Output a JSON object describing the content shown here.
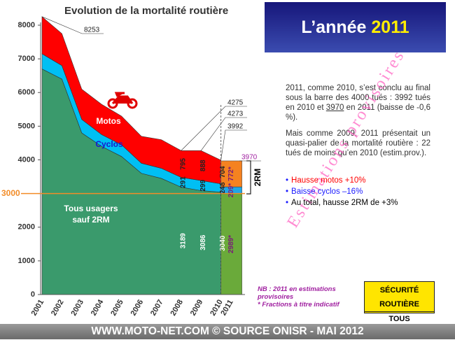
{
  "chart_data": {
    "type": "area",
    "stacked": true,
    "title": "Evolution de la mortalité routière",
    "categories": [
      "2001",
      "2002",
      "2003",
      "2004",
      "2005",
      "2006",
      "2007",
      "2008",
      "2009",
      "2010",
      "2011"
    ],
    "estimate_category": "2011",
    "series": [
      {
        "name": "Tous usagers sauf 2RM",
        "color": "#3a9a6c",
        "estimate_color": "#6aaa3a",
        "values": [
          6700,
          6400,
          4800,
          4400,
          4100,
          3600,
          3450,
          3189,
          3086,
          3040,
          2989
        ],
        "value_labels": [
          null,
          null,
          null,
          null,
          null,
          null,
          null,
          "3189",
          "3086",
          "3040",
          "2989*"
        ]
      },
      {
        "name": "Cyclos",
        "color": "#00bff3",
        "estimate_color": "#1fa6e6",
        "values": [
          450,
          400,
          400,
          350,
          350,
          300,
          300,
          291,
          299,
          248,
          209
        ],
        "value_labels": [
          null,
          null,
          null,
          null,
          null,
          null,
          null,
          "291",
          "299",
          "248",
          "209*"
        ]
      },
      {
        "name": "Motos",
        "color": "#ff0000",
        "estimate_color": "#f58220",
        "values": [
          1103,
          950,
          900,
          900,
          850,
          800,
          850,
          795,
          888,
          704,
          772
        ],
        "value_labels": [
          null,
          null,
          null,
          null,
          null,
          null,
          null,
          "795",
          "888",
          "704",
          "772*"
        ]
      }
    ],
    "totals": [
      {
        "category": "2001",
        "value": 8253
      },
      {
        "category": "2008",
        "value": 4275
      },
      {
        "category": "2009",
        "value": 4273
      },
      {
        "category": "2010",
        "value": 3992
      },
      {
        "category": "2011",
        "value": 3970
      }
    ],
    "ylim": [
      0,
      8000
    ],
    "yticks": [
      0,
      1000,
      2000,
      3000,
      4000,
      5000,
      6000,
      7000,
      8000
    ],
    "reference_line": {
      "value": 3000,
      "color": "#f28c28"
    },
    "bracket_label": "2RM"
  },
  "panel": {
    "heading_text": "L’année ",
    "heading_year": "2011",
    "paragraph1": [
      "2011, comme 2010, s’est conclu au final sous la barre des 4000 tués : 3992 tués en 2010 et ",
      "3970",
      " en 2011 (baisse de -0,6 %)."
    ],
    "paragraph2": "Mais comme 2009, 2011 présentait un quasi-palier de la mortalité routière : 22 tués de moins qu’en 2010 (estim.prov.).",
    "bullets": [
      {
        "text": "Hausse motos +10%",
        "color": "#ff0000"
      },
      {
        "text": "Baisse cyclos –16%",
        "color": "#1a1aff"
      },
      {
        "text": "Au total, hausse 2RM de +3%",
        "color": "#000000"
      }
    ],
    "watermark": "Estimations provisoires",
    "note": [
      "NB : 2011 en estimations provisoires",
      "* Fractions à titre indicatif"
    ],
    "badge": [
      "SÉCURITÉ ROUTIÈRE",
      "TOUS RESPONSABLES"
    ],
    "footer": "WWW.MOTO-NET.COM © SOURCE ONISR - MAI 2012"
  }
}
